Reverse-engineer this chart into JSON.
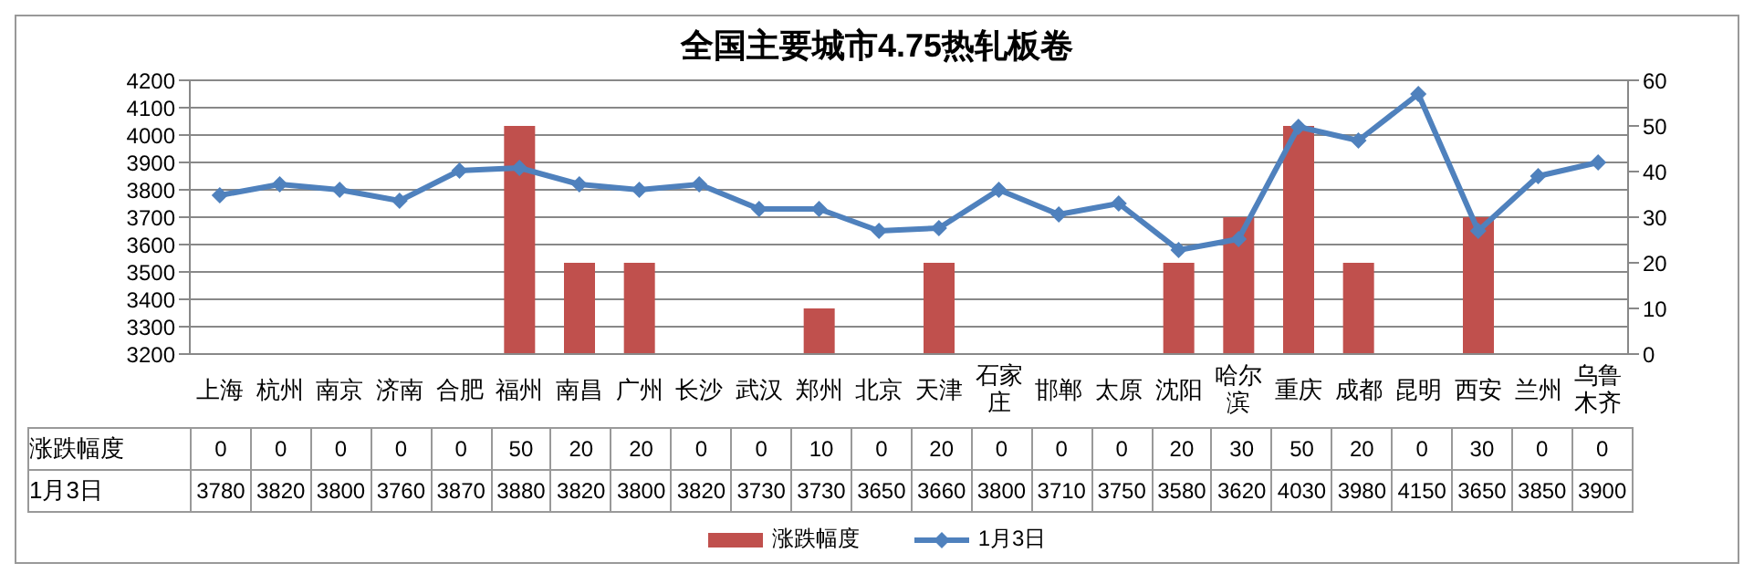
{
  "chart_data": {
    "type": "bar",
    "title": "全国主要城市4.75热轧板卷",
    "categories": [
      "上海",
      "杭州",
      "南京",
      "济南",
      "合肥",
      "福州",
      "南昌",
      "广州",
      "长沙",
      "武汉",
      "郑州",
      "北京",
      "天津",
      "石家庄",
      "邯郸",
      "太原",
      "沈阳",
      "哈尔滨",
      "重庆",
      "成都",
      "昆明",
      "西安",
      "兰州",
      "乌鲁木齐"
    ],
    "series": [
      {
        "name": "涨跌幅度",
        "axis": "y2",
        "color": "#c0504d",
        "values": [
          0,
          0,
          0,
          0,
          0,
          50,
          20,
          20,
          0,
          0,
          10,
          0,
          20,
          0,
          0,
          0,
          20,
          30,
          50,
          20,
          0,
          30,
          0,
          0
        ]
      },
      {
        "name": "1月3日",
        "type": "line",
        "color": "#4f81bd",
        "marker": "diamond",
        "values": [
          3780,
          3820,
          3800,
          3760,
          3870,
          3880,
          3820,
          3800,
          3820,
          3730,
          3730,
          3650,
          3660,
          3800,
          3710,
          3750,
          3580,
          3620,
          4030,
          3980,
          4150,
          3650,
          3850,
          3900
        ]
      }
    ],
    "ylim": [
      3200,
      4200
    ],
    "yticks": [
      3200,
      3300,
      3400,
      3500,
      3600,
      3700,
      3800,
      3900,
      4000,
      4100,
      4200
    ],
    "y2lim": [
      0,
      60
    ],
    "y2ticks": [
      0,
      10,
      20,
      30,
      40,
      50,
      60
    ],
    "grid": "y",
    "legend": "bottom",
    "data_labels": true
  }
}
